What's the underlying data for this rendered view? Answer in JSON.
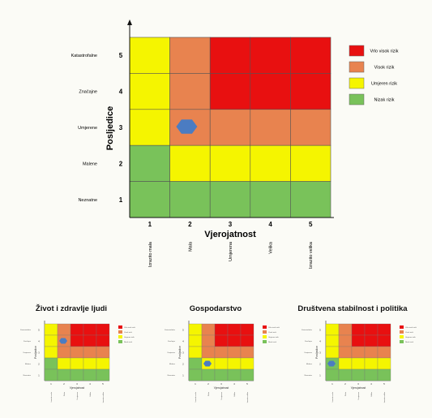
{
  "colors": {
    "very_high": "#e81010",
    "high": "#e8834f",
    "moderate": "#f5f500",
    "low": "#79c25a",
    "marker": "#4b7cc2"
  },
  "levels": [
    "Vrlo visok rizik",
    "Visok rizik",
    "Umjeren rizik",
    "Nizak rizik"
  ],
  "matrix": [
    [
      2,
      1,
      0,
      0,
      0
    ],
    [
      2,
      1,
      0,
      0,
      0
    ],
    [
      2,
      1,
      1,
      1,
      1
    ],
    [
      3,
      2,
      2,
      2,
      2
    ],
    [
      3,
      3,
      3,
      3,
      3
    ]
  ],
  "y_axis": {
    "title": "Posljedice",
    "numbers": [
      "5",
      "4",
      "3",
      "2",
      "1"
    ],
    "labels": [
      "Katastrofalne",
      "Značajne",
      "Umjerene",
      "Malene",
      "Neznatne"
    ]
  },
  "x_axis": {
    "title": "Vjerojatnost",
    "numbers": [
      "1",
      "2",
      "3",
      "4",
      "5"
    ],
    "labels": [
      "Izrazito mala",
      "Mala",
      "Umjerena",
      "Velika",
      "Izrazito velika"
    ]
  },
  "main_marker": {
    "likelihood": 2,
    "consequence": 3
  },
  "panels": [
    {
      "title": "Život i zdravlje ljudi",
      "marker": {
        "likelihood": 2,
        "consequence": 4
      }
    },
    {
      "title": "Gospodarstvo",
      "marker": {
        "likelihood": 2,
        "consequence": 2
      }
    },
    {
      "title": "Društvena stabilnost i politika",
      "marker": {
        "likelihood": 1,
        "consequence": 2
      }
    }
  ]
}
